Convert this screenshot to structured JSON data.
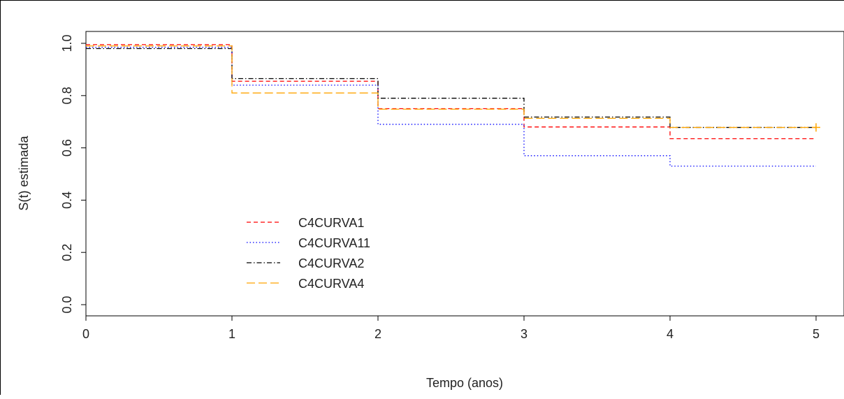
{
  "chart_data": {
    "type": "line",
    "step": true,
    "title": "",
    "xlabel": "Tempo (anos)",
    "ylabel": "S(t) estimada",
    "xlim": [
      0,
      5
    ],
    "ylim": [
      0,
      1
    ],
    "x_ticks": [
      0,
      1,
      2,
      3,
      4,
      5
    ],
    "y_ticks": [
      0.0,
      0.2,
      0.4,
      0.6,
      0.8,
      1.0
    ],
    "x_tick_labels": [
      "0",
      "1",
      "2",
      "3",
      "4",
      "5"
    ],
    "y_tick_labels": [
      "0.0",
      "0.2",
      "0.4",
      "0.6",
      "0.8",
      "1.0"
    ],
    "grid": false,
    "legend_position": "bottom-left",
    "series": [
      {
        "name": "C4CURVA1",
        "color": "#ff0000",
        "line_style": "dashed",
        "x": [
          0,
          1,
          2,
          3,
          4,
          5
        ],
        "y": [
          0.995,
          0.855,
          0.75,
          0.68,
          0.635,
          0.635
        ]
      },
      {
        "name": "C4CURVA11",
        "color": "#0000ff",
        "line_style": "dotted",
        "x": [
          0,
          1,
          2,
          3,
          4,
          5
        ],
        "y": [
          0.985,
          0.84,
          0.69,
          0.57,
          0.53,
          0.53
        ]
      },
      {
        "name": "C4CURVA2",
        "color": "#000000",
        "line_style": "dashdot",
        "x": [
          0,
          1,
          2,
          3,
          4,
          5
        ],
        "y": [
          0.98,
          0.865,
          0.79,
          0.718,
          0.678,
          0.678
        ]
      },
      {
        "name": "C4CURVA4",
        "color": "#ffa500",
        "line_style": "longdash",
        "x": [
          0,
          1,
          2,
          3,
          4,
          5
        ],
        "y": [
          0.99,
          0.81,
          0.748,
          0.713,
          0.678,
          0.678
        ],
        "censor_marks": [
          5
        ]
      }
    ]
  }
}
